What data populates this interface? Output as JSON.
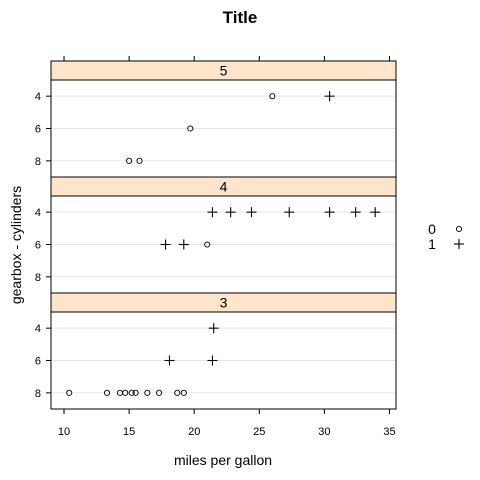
{
  "chart_data": {
    "type": "scatter",
    "title": "Title",
    "xlabel": "miles per gallon",
    "ylabel": "gearbox - cylinders",
    "xlim": [
      9,
      35.5
    ],
    "x_ticks": [
      10,
      15,
      20,
      25,
      30,
      35
    ],
    "y_categories": [
      "4",
      "6",
      "8"
    ],
    "grid": true,
    "legend_position": "right",
    "legend": [
      {
        "label": "0",
        "symbol": "circle"
      },
      {
        "label": "1",
        "symbol": "plus"
      }
    ],
    "panels": [
      {
        "label": "5",
        "points": [
          {
            "x": 26.0,
            "y": "4",
            "group": "0"
          },
          {
            "x": 30.4,
            "y": "4",
            "group": "1"
          },
          {
            "x": 19.7,
            "y": "6",
            "group": "0"
          },
          {
            "x": 15.0,
            "y": "8",
            "group": "0"
          },
          {
            "x": 15.8,
            "y": "8",
            "group": "0"
          }
        ]
      },
      {
        "label": "4",
        "points": [
          {
            "x": 21.4,
            "y": "4",
            "group": "1"
          },
          {
            "x": 22.8,
            "y": "4",
            "group": "1"
          },
          {
            "x": 24.4,
            "y": "4",
            "group": "1"
          },
          {
            "x": 27.3,
            "y": "4",
            "group": "1"
          },
          {
            "x": 30.4,
            "y": "4",
            "group": "1"
          },
          {
            "x": 32.4,
            "y": "4",
            "group": "1"
          },
          {
            "x": 33.9,
            "y": "4",
            "group": "1"
          },
          {
            "x": 17.8,
            "y": "6",
            "group": "1"
          },
          {
            "x": 19.2,
            "y": "6",
            "group": "1"
          },
          {
            "x": 21.0,
            "y": "6",
            "group": "0"
          }
        ]
      },
      {
        "label": "3",
        "points": [
          {
            "x": 21.5,
            "y": "4",
            "group": "1"
          },
          {
            "x": 18.1,
            "y": "6",
            "group": "1"
          },
          {
            "x": 21.4,
            "y": "6",
            "group": "1"
          },
          {
            "x": 10.4,
            "y": "8",
            "group": "0"
          },
          {
            "x": 13.3,
            "y": "8",
            "group": "0"
          },
          {
            "x": 14.3,
            "y": "8",
            "group": "0"
          },
          {
            "x": 14.7,
            "y": "8",
            "group": "0"
          },
          {
            "x": 15.2,
            "y": "8",
            "group": "0"
          },
          {
            "x": 15.5,
            "y": "8",
            "group": "0"
          },
          {
            "x": 16.4,
            "y": "8",
            "group": "0"
          },
          {
            "x": 17.3,
            "y": "8",
            "group": "0"
          },
          {
            "x": 18.7,
            "y": "8",
            "group": "0"
          },
          {
            "x": 19.2,
            "y": "8",
            "group": "0"
          }
        ]
      }
    ]
  }
}
